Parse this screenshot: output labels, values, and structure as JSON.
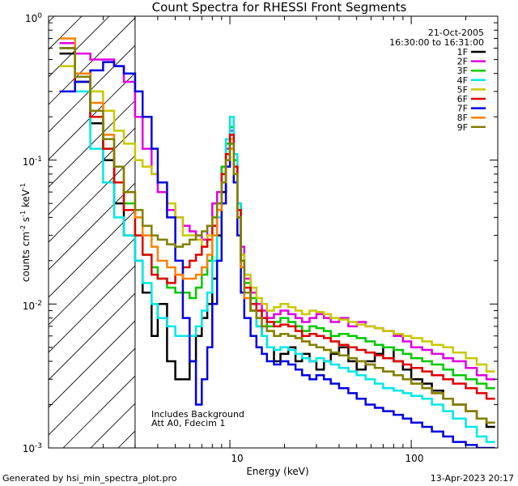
{
  "chart_data": {
    "type": "line",
    "title": "Count Spectra for RHESSI Front Segments",
    "xlabel": "Energy (keV)",
    "ylabel_parts": [
      "counts cm",
      "-2",
      " s",
      "-1",
      " keV",
      "-1"
    ],
    "xscale": "log",
    "yscale": "log",
    "xlim": [
      1,
      300
    ],
    "ylim": [
      0.001,
      1
    ],
    "x_ticks": [
      {
        "value": 10,
        "label": "10"
      },
      {
        "value": 100,
        "label": "100"
      }
    ],
    "y_ticks": [
      {
        "value": 1,
        "base": "10",
        "exp": "0"
      },
      {
        "value": 0.1,
        "base": "10",
        "exp": "-1"
      },
      {
        "value": 0.01,
        "base": "10",
        "exp": "-2"
      },
      {
        "value": 0.001,
        "base": "10",
        "exp": "-3"
      }
    ],
    "shaded_region": {
      "x_from": 1,
      "x_to": 3,
      "pattern": "diagonal hatch"
    },
    "date": "21-Oct-2005",
    "time_range": "16:30:00 to 16:31:00",
    "annotations": [
      "Includes Background",
      "Att A0, Fdecim 1"
    ],
    "legend_position": "top-right",
    "energy_bins": [
      1.15,
      1.4,
      1.7,
      2.0,
      2.3,
      2.6,
      3.0,
      3.3,
      3.7,
      4.0,
      4.5,
      5.0,
      5.5,
      6.0,
      6.5,
      7.0,
      7.5,
      8.0,
      8.5,
      9.0,
      9.5,
      10.0,
      10.5,
      11.0,
      11.5,
      12.0,
      13.0,
      14.0,
      15.0,
      16.0,
      17.5,
      19.0,
      21.0,
      23.0,
      25.0,
      27.5,
      30.0,
      33.0,
      36.0,
      40.0,
      45.0,
      50.0,
      56.0,
      63.0,
      70.0,
      80.0,
      90.0,
      100.0,
      115.0,
      130.0,
      150.0,
      170.0,
      200.0,
      230.0,
      260.0,
      290.0
    ],
    "series": [
      {
        "name": "1F",
        "color": "#000000",
        "values": [
          0.55,
          0.35,
          0.18,
          0.1,
          0.05,
          0.03,
          0.02,
          0.012,
          0.006,
          0.01,
          0.004,
          0.003,
          0.003,
          0.004,
          0.006,
          0.008,
          0.01,
          0.015,
          0.03,
          0.06,
          0.1,
          0.14,
          0.09,
          0.04,
          0.018,
          0.012,
          0.009,
          0.007,
          0.006,
          0.005,
          0.004,
          0.0045,
          0.005,
          0.004,
          0.0045,
          0.004,
          0.0035,
          0.004,
          0.0045,
          0.005,
          0.004,
          0.0035,
          0.004,
          0.0045,
          0.005,
          0.004,
          0.0035,
          0.003,
          0.0028,
          0.0025,
          0.0022,
          0.002,
          0.0018,
          0.0016,
          0.0014,
          0.0012
        ]
      },
      {
        "name": "2F",
        "color": "#e000e0",
        "values": [
          0.65,
          0.55,
          0.5,
          0.5,
          0.45,
          0.35,
          0.2,
          0.12,
          0.08,
          0.06,
          0.045,
          0.04,
          0.035,
          0.032,
          0.03,
          0.028,
          0.035,
          0.05,
          0.06,
          0.09,
          0.12,
          0.16,
          0.1,
          0.05,
          0.025,
          0.015,
          0.012,
          0.01,
          0.009,
          0.008,
          0.0085,
          0.009,
          0.0085,
          0.008,
          0.0075,
          0.008,
          0.0085,
          0.008,
          0.0075,
          0.008,
          0.007,
          0.0075,
          0.007,
          0.0068,
          0.0065,
          0.006,
          0.0055,
          0.005,
          0.0048,
          0.0045,
          0.0042,
          0.004,
          0.0036,
          0.0032,
          0.003,
          0.0028
        ]
      },
      {
        "name": "3F",
        "color": "#00c800",
        "values": [
          0.6,
          0.35,
          0.2,
          0.12,
          0.07,
          0.05,
          0.03,
          0.022,
          0.018,
          0.015,
          0.013,
          0.012,
          0.012,
          0.011,
          0.013,
          0.016,
          0.02,
          0.03,
          0.05,
          0.09,
          0.13,
          0.17,
          0.1,
          0.05,
          0.022,
          0.014,
          0.011,
          0.009,
          0.008,
          0.007,
          0.0075,
          0.008,
          0.0075,
          0.007,
          0.0065,
          0.007,
          0.0068,
          0.0065,
          0.006,
          0.0062,
          0.006,
          0.0058,
          0.0055,
          0.0052,
          0.005,
          0.0048,
          0.0045,
          0.0042,
          0.004,
          0.0038,
          0.0035,
          0.0032,
          0.003,
          0.0028,
          0.0026,
          0.0024
        ]
      },
      {
        "name": "4F",
        "color": "#00e8e8",
        "values": [
          0.6,
          0.3,
          0.12,
          0.07,
          0.04,
          0.03,
          0.02,
          0.014,
          0.01,
          0.008,
          0.007,
          0.006,
          0.006,
          0.006,
          0.007,
          0.009,
          0.012,
          0.02,
          0.04,
          0.08,
          0.14,
          0.2,
          0.11,
          0.05,
          0.02,
          0.012,
          0.009,
          0.007,
          0.006,
          0.005,
          0.0048,
          0.005,
          0.0048,
          0.0045,
          0.0042,
          0.004,
          0.0042,
          0.004,
          0.0038,
          0.0036,
          0.0034,
          0.0032,
          0.003,
          0.0028,
          0.0026,
          0.0025,
          0.0024,
          0.0023,
          0.0022,
          0.002,
          0.0018,
          0.0016,
          0.0014,
          0.0012,
          0.0011,
          0.001
        ]
      },
      {
        "name": "5F",
        "color": "#c8c800",
        "values": [
          0.45,
          0.4,
          0.3,
          0.22,
          0.16,
          0.13,
          0.1,
          0.09,
          0.08,
          0.07,
          0.05,
          0.04,
          0.03,
          0.03,
          0.028,
          0.025,
          0.03,
          0.04,
          0.05,
          0.08,
          0.11,
          0.14,
          0.09,
          0.04,
          0.022,
          0.016,
          0.013,
          0.011,
          0.01,
          0.009,
          0.0095,
          0.01,
          0.0095,
          0.009,
          0.0085,
          0.009,
          0.0088,
          0.0085,
          0.008,
          0.0078,
          0.0075,
          0.0072,
          0.007,
          0.0068,
          0.0065,
          0.0062,
          0.006,
          0.0058,
          0.0055,
          0.0052,
          0.005,
          0.0046,
          0.0042,
          0.0038,
          0.0034,
          0.003
        ]
      },
      {
        "name": "6F",
        "color": "#e00000",
        "values": [
          0.6,
          0.35,
          0.2,
          0.12,
          0.07,
          0.045,
          0.03,
          0.022,
          0.016,
          0.015,
          0.014,
          0.016,
          0.018,
          0.02,
          0.022,
          0.025,
          0.028,
          0.035,
          0.05,
          0.08,
          0.11,
          0.15,
          0.09,
          0.045,
          0.02,
          0.013,
          0.01,
          0.009,
          0.008,
          0.0075,
          0.007,
          0.0072,
          0.007,
          0.0065,
          0.006,
          0.0062,
          0.006,
          0.0058,
          0.0055,
          0.0052,
          0.005,
          0.0048,
          0.0046,
          0.0044,
          0.0042,
          0.004,
          0.0038,
          0.0036,
          0.0034,
          0.0032,
          0.003,
          0.0028,
          0.0026,
          0.0024,
          0.0022,
          0.002
        ]
      },
      {
        "name": "7F",
        "color": "#0000e0",
        "values": [
          0.3,
          0.35,
          0.42,
          0.48,
          0.45,
          0.4,
          0.3,
          0.2,
          0.12,
          0.07,
          0.04,
          0.02,
          0.008,
          0.004,
          0.002,
          0.003,
          0.005,
          0.01,
          0.02,
          0.05,
          0.09,
          0.13,
          0.07,
          0.03,
          0.012,
          0.008,
          0.006,
          0.005,
          0.0045,
          0.004,
          0.0038,
          0.004,
          0.0038,
          0.0035,
          0.0032,
          0.003,
          0.0032,
          0.003,
          0.0028,
          0.0026,
          0.0024,
          0.0022,
          0.002,
          0.0019,
          0.0018,
          0.0017,
          0.0016,
          0.0015,
          0.0014,
          0.0013,
          0.0012,
          0.0011,
          0.00105,
          0.001,
          0.001,
          0.001
        ]
      },
      {
        "name": "8F",
        "color": "#ff8000",
        "values": [
          0.7,
          0.4,
          0.25,
          0.15,
          0.09,
          0.06,
          0.04,
          0.03,
          0.025,
          0.02,
          0.018,
          0.016,
          0.015,
          0.015,
          0.016,
          0.018,
          0.022,
          0.03,
          0.045,
          0.07,
          0.1,
          0.12,
          0.08,
          0.04,
          0.018,
          0.011,
          0.009,
          0.008,
          0.007,
          0.0065,
          0.006,
          0.0062,
          0.006,
          0.0058,
          0.0055,
          0.0052,
          0.005,
          0.0048,
          0.0046,
          0.0044,
          0.0042,
          0.004,
          0.0038,
          0.0036,
          0.0034,
          0.0032,
          0.003,
          0.0028,
          0.0026,
          0.0024,
          0.0022,
          0.002,
          0.0018,
          0.0016,
          0.0015,
          0.0014
        ]
      },
      {
        "name": "9F",
        "color": "#808000",
        "values": [
          0.6,
          0.38,
          0.22,
          0.14,
          0.09,
          0.06,
          0.045,
          0.035,
          0.03,
          0.028,
          0.026,
          0.025,
          0.026,
          0.028,
          0.03,
          0.032,
          0.035,
          0.04,
          0.05,
          0.07,
          0.1,
          0.13,
          0.08,
          0.04,
          0.02,
          0.012,
          0.009,
          0.008,
          0.007,
          0.0065,
          0.006,
          0.0062,
          0.006,
          0.0058,
          0.0055,
          0.0052,
          0.005,
          0.0048,
          0.0046,
          0.0044,
          0.0042,
          0.004,
          0.0038,
          0.0036,
          0.0034,
          0.0032,
          0.003,
          0.0028,
          0.0026,
          0.0024,
          0.0022,
          0.002,
          0.0018,
          0.0016,
          0.0015,
          0.0014
        ]
      }
    ]
  },
  "footer": {
    "left": "Generated by hsi_min_spectra_plot.pro",
    "right": "13-Apr-2023 20:17"
  }
}
